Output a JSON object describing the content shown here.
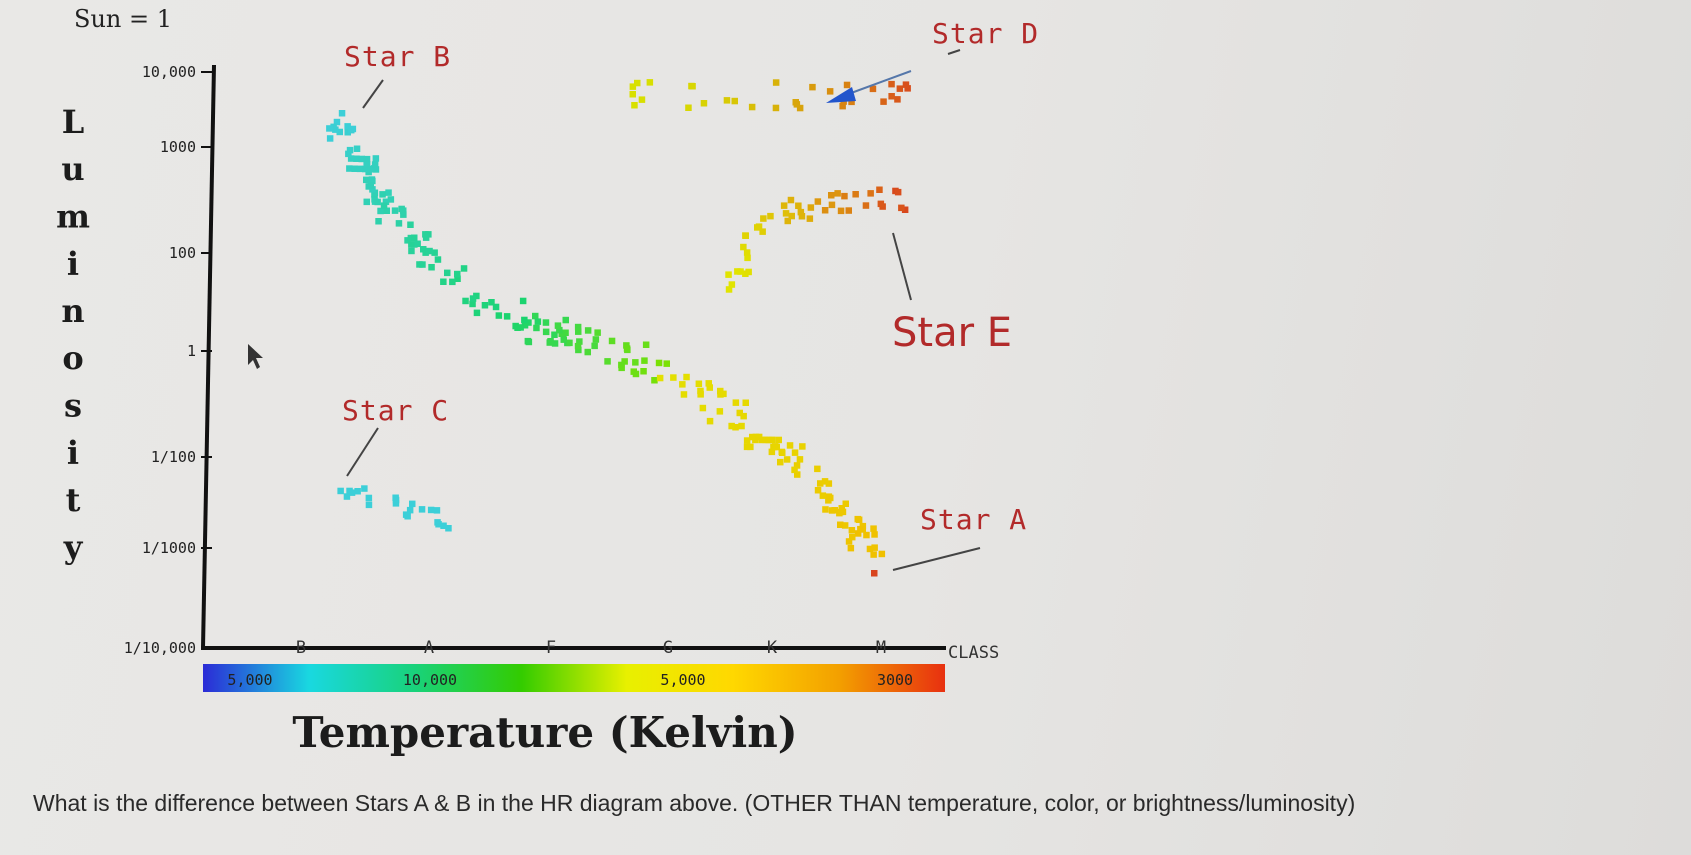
{
  "question": "What is the difference between Stars A & B in the HR diagram above. (OTHER THAN temperature, color, or brightness/luminosity)",
  "chart_data": {
    "type": "scatter",
    "title": "",
    "sun_note": "Sun = 1",
    "ylabel": "Luminosity",
    "xlabel": "Temperature (Kelvin)",
    "y_scale": "log",
    "ylim": [
      0.0001,
      10000
    ],
    "y_ticks": [
      {
        "value": 10000,
        "label": "10,000"
      },
      {
        "value": 1000,
        "label": "1000"
      },
      {
        "value": 100,
        "label": "100"
      },
      {
        "value": 1,
        "label": "1"
      },
      {
        "value": 0.01,
        "label": "1/100"
      },
      {
        "value": 0.001,
        "label": "1/1000"
      },
      {
        "value": 0.0001,
        "label": "1/10,000"
      }
    ],
    "x_direction": "decreasing temperature left to right",
    "spectral_classes": [
      "B",
      "A",
      "F",
      "G",
      "K",
      "M"
    ],
    "class_axis_label": "CLASS",
    "temperature_bar_labels": [
      "5,000",
      "10,000",
      "5,000",
      "3000"
    ],
    "temperature_bar_colors": [
      "#2b2bd6",
      "#19d8e0",
      "#19d27a",
      "#33cc00",
      "#e8f000",
      "#ffd800",
      "#f3a000",
      "#e83010"
    ],
    "groups": [
      {
        "name": "Main sequence",
        "color_range": [
          "#3ccfd8",
          "#e3e000"
        ]
      },
      {
        "name": "Giants",
        "color_range": [
          "#e1e400",
          "#d8441e"
        ]
      },
      {
        "name": "Supergiants",
        "color_range": [
          "#d8e000",
          "#d8441e"
        ]
      },
      {
        "name": "White dwarfs",
        "color_range": [
          "#3ccfd8",
          "#3ccfd8"
        ]
      }
    ],
    "annotations": [
      {
        "label": "Star A",
        "class": "M",
        "luminosity": 0.0005,
        "color": "#b22a2a"
      },
      {
        "label": "Star B",
        "class": "B",
        "luminosity": 2000,
        "color": "#b22a2a"
      },
      {
        "label": "Star C",
        "class": "B",
        "luminosity": 0.005,
        "color": "#b22a2a"
      },
      {
        "label": "Star D",
        "class": "K",
        "luminosity": 6000,
        "color": "#b22a2a"
      },
      {
        "label": "Star E",
        "class": "M",
        "luminosity": 500,
        "color": "#b22a2a"
      }
    ]
  }
}
